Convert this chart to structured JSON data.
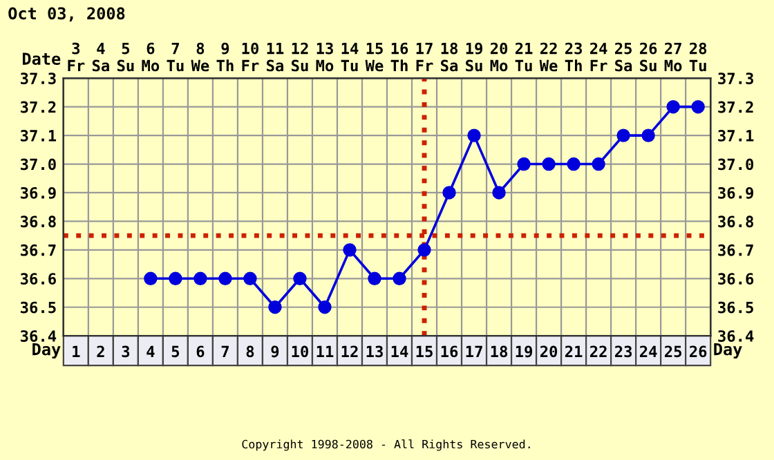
{
  "chart_data": {
    "type": "line",
    "title": "Oct 03, 2008",
    "xlabel": "Date",
    "x2label": "Day",
    "marker": "circle",
    "line_style": "solid",
    "grid": true,
    "legend": false,
    "x": [
      6,
      7,
      8,
      9,
      10,
      11,
      12,
      13,
      14,
      15,
      16,
      17,
      18,
      19,
      20,
      21,
      22,
      23,
      24,
      25,
      26,
      27,
      28
    ],
    "xlim": [
      2.5,
      28.5
    ],
    "xticks": [
      {
        "value": 3,
        "label": "3\nFr"
      },
      {
        "value": 4,
        "label": "4\nSa"
      },
      {
        "value": 5,
        "label": "5\nSu"
      },
      {
        "value": 6,
        "label": "6\nMo"
      },
      {
        "value": 7,
        "label": "7\nTu"
      },
      {
        "value": 8,
        "label": "8\nWe"
      },
      {
        "value": 9,
        "label": "9\nTh"
      },
      {
        "value": 10,
        "label": "10\nFr"
      },
      {
        "value": 11,
        "label": "11\nSa"
      },
      {
        "value": 12,
        "label": "12\nSu"
      },
      {
        "value": 13,
        "label": "13\nMo"
      },
      {
        "value": 14,
        "label": "14\nTu"
      },
      {
        "value": 15,
        "label": "15\nWe"
      },
      {
        "value": 16,
        "label": "16\nTh"
      },
      {
        "value": 17,
        "label": "17\nFr"
      },
      {
        "value": 18,
        "label": "18\nSa"
      },
      {
        "value": 19,
        "label": "19\nSu"
      },
      {
        "value": 20,
        "label": "20\nMo"
      },
      {
        "value": 21,
        "label": "21\nTu"
      },
      {
        "value": 22,
        "label": "22\nWe"
      },
      {
        "value": 23,
        "label": "23\nTh"
      },
      {
        "value": 24,
        "label": "24\nFr"
      },
      {
        "value": 25,
        "label": "25\nSa"
      },
      {
        "value": 26,
        "label": "26\nSu"
      },
      {
        "value": 27,
        "label": "27\nMo"
      },
      {
        "value": 28,
        "label": "28\nTu"
      }
    ],
    "x2lim": [
      0.5,
      26.5
    ],
    "x2ticks": [
      1,
      2,
      3,
      4,
      5,
      6,
      7,
      8,
      9,
      10,
      11,
      12,
      13,
      14,
      15,
      16,
      17,
      18,
      19,
      20,
      21,
      22,
      23,
      24,
      25,
      26
    ],
    "series": [
      {
        "color": "#0000dd",
        "values": [
          36.6,
          36.6,
          36.6,
          36.6,
          36.6,
          36.5,
          36.6,
          36.5,
          36.7,
          36.6,
          36.6,
          36.7,
          36.9,
          37.1,
          36.9,
          37.0,
          37.0,
          37.0,
          37.0,
          37.1,
          37.1,
          37.2,
          37.2
        ]
      }
    ],
    "ylim": [
      36.4,
      37.3
    ],
    "yticks": [
      36.4,
      36.5,
      36.6,
      36.7,
      36.8,
      36.9,
      {
        "value": 37.0,
        "label": "37.0"
      },
      37.1,
      37.2,
      37.3
    ],
    "y2lim": [
      36.4,
      37.3
    ],
    "y2ticks": [
      36.4,
      36.5,
      36.6,
      36.7,
      36.8,
      36.9,
      {
        "value": 37.0,
        "label": "37.0"
      },
      37.1,
      37.2,
      37.3
    ],
    "ref_lines": [
      {
        "axis": "y",
        "value": 36.75,
        "color": "#cc2200",
        "line_style": "dotted"
      },
      {
        "axis": "x",
        "value": 17,
        "color": "#cc2200",
        "line_style": "dotted"
      }
    ],
    "annotations": [
      "Copyright 1998-2008 - All Rights Reserved."
    ]
  }
}
